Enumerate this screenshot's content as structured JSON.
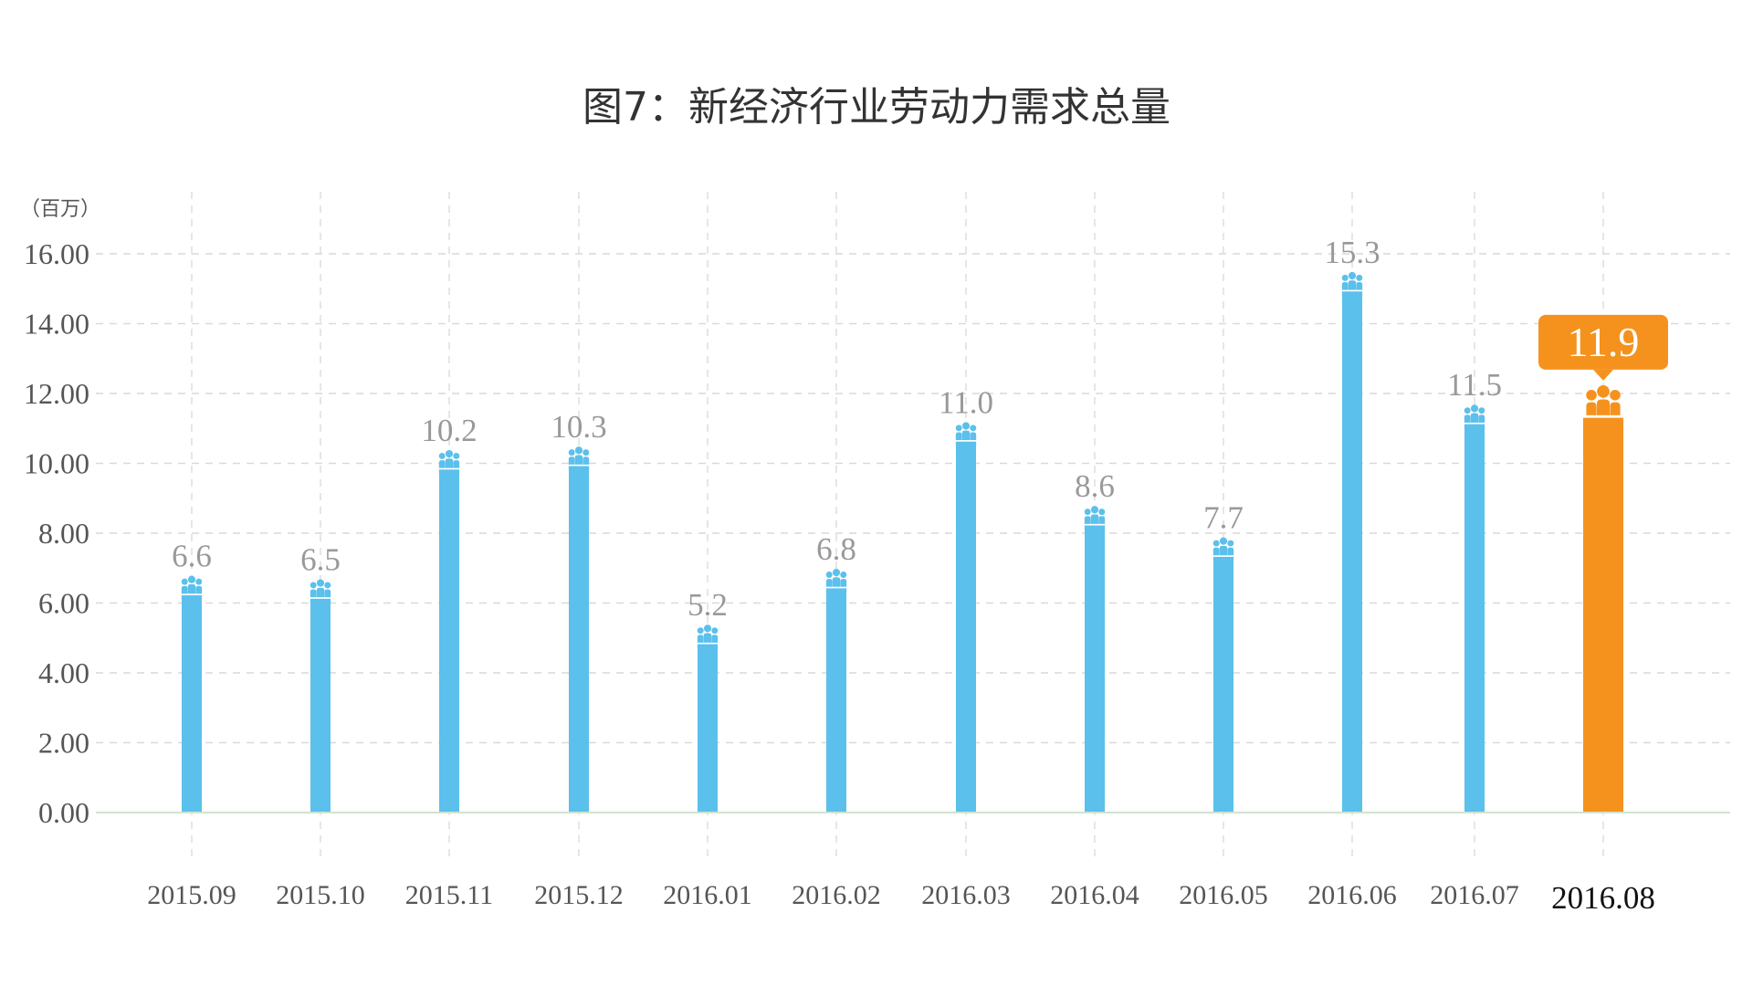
{
  "chart_data": {
    "type": "bar",
    "title": "图7：新经济行业劳动力需求总量",
    "unit_label": "（百万）",
    "categories": [
      "2015.09",
      "2015.10",
      "2015.11",
      "2015.12",
      "2016.01",
      "2016.02",
      "2016.03",
      "2016.04",
      "2016.05",
      "2016.06",
      "2016.07",
      "2016.08"
    ],
    "values": [
      6.6,
      6.5,
      10.2,
      10.3,
      5.2,
      6.8,
      11.0,
      8.6,
      7.7,
      15.3,
      11.5,
      11.9
    ],
    "value_labels": [
      "6.6",
      "6.5",
      "10.2",
      "10.3",
      "5.2",
      "6.8",
      "11.0",
      "8.6",
      "7.7",
      "15.3",
      "11.5",
      "11.9"
    ],
    "ylim": [
      0,
      16
    ],
    "yticks": [
      "0.00",
      "2.00",
      "4.00",
      "6.00",
      "8.00",
      "10.00",
      "12.00",
      "14.00",
      "16.00"
    ],
    "highlight_index": 11,
    "grid": true,
    "bar_icon": "people-icon"
  },
  "colors": {
    "bar": "#5bc0eb",
    "highlight": "#f5921e",
    "grid": "#d9d9d9",
    "label": "#999999"
  }
}
